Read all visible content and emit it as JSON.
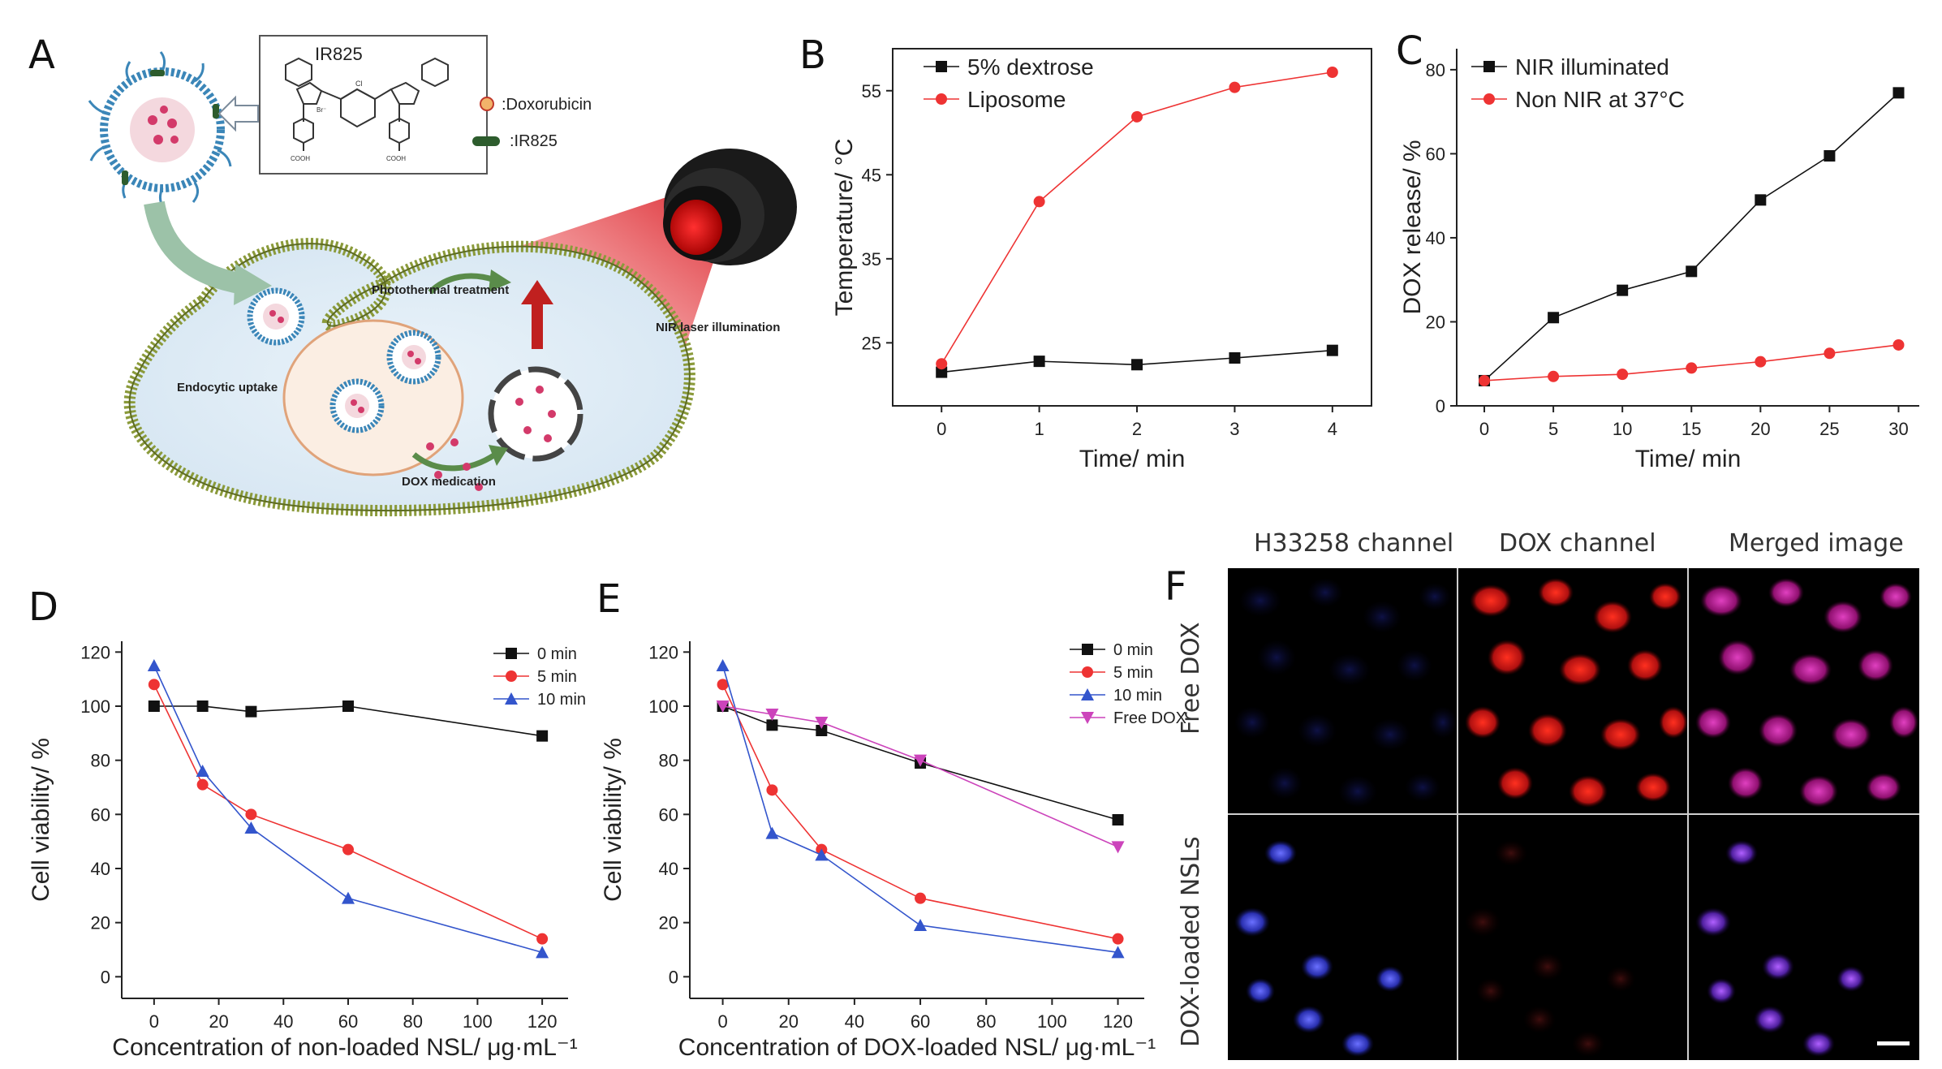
{
  "panels": {
    "A": "A",
    "B": "B",
    "C": "C",
    "D": "D",
    "E": "E",
    "F": "F"
  },
  "schematic": {
    "molecule_name": "IR825",
    "legend_doxorubicin": ":Doxorubicin",
    "legend_ir825": ":IR825",
    "label_photothermal": "Photothermal treatment",
    "label_laser": "NIR laser illumination",
    "label_endocytic": "Endocytic uptake",
    "label_dox_medication": "DOX medication",
    "cooh_left": "COOH",
    "cooh_right": "COOH",
    "cl_label": "Cl",
    "br_label": "Br⁻"
  },
  "microscopy": {
    "columns": [
      "H33258 channel",
      "DOX channel",
      "Merged image"
    ],
    "rows": [
      "Free DOX",
      "DOX-loaded NSLs"
    ]
  },
  "chart_data": [
    {
      "id": "B",
      "type": "line",
      "xlabel": "Time/ min",
      "ylabel": "Temperature/ °C",
      "xlim": [
        -0.5,
        4.4
      ],
      "ylim": [
        17.5,
        60
      ],
      "xticks": [
        0,
        1,
        2,
        3,
        4
      ],
      "yticks": [
        25,
        35,
        45,
        55
      ],
      "series": [
        {
          "name": "5% dextrose",
          "color": "#111111",
          "marker": "square",
          "x": [
            0,
            1,
            2,
            3,
            4
          ],
          "y": [
            21.5,
            22.8,
            22.4,
            23.2,
            24.1
          ]
        },
        {
          "name": "Liposome",
          "color": "#ee3333",
          "marker": "circle",
          "x": [
            0,
            1,
            2,
            3,
            4
          ],
          "y": [
            22.5,
            41.8,
            51.9,
            55.4,
            57.2
          ]
        }
      ]
    },
    {
      "id": "C",
      "type": "line",
      "xlabel": "Time/ min",
      "ylabel": "DOX release/ %",
      "xlim": [
        -2,
        31.5
      ],
      "ylim": [
        0,
        85
      ],
      "xticks": [
        0,
        5,
        10,
        15,
        20,
        25,
        30
      ],
      "yticks": [
        0,
        20,
        40,
        60,
        80
      ],
      "series": [
        {
          "name": "NIR illuminated",
          "color": "#111111",
          "marker": "square",
          "x": [
            0,
            5,
            10,
            15,
            20,
            25,
            30
          ],
          "y": [
            6,
            21,
            27.5,
            32,
            49,
            59.5,
            74.5
          ]
        },
        {
          "name": "Non NIR at 37°C",
          "color": "#ee3333",
          "marker": "circle",
          "x": [
            0,
            5,
            10,
            15,
            20,
            25,
            30
          ],
          "y": [
            6,
            7,
            7.5,
            9,
            10.5,
            12.5,
            14.5
          ]
        }
      ]
    },
    {
      "id": "D",
      "type": "line",
      "xlabel": "Concentration of non-loaded NSL/ μg·mL⁻¹",
      "ylabel": "Cell viability/ %",
      "xlim": [
        -10,
        128
      ],
      "ylim": [
        -8,
        124
      ],
      "xticks": [
        0,
        20,
        40,
        60,
        80,
        100,
        120
      ],
      "yticks": [
        0,
        20,
        40,
        60,
        80,
        100,
        120
      ],
      "series": [
        {
          "name": "0 min",
          "color": "#111111",
          "marker": "square",
          "x": [
            0,
            15,
            30,
            60,
            120
          ],
          "y": [
            100,
            100,
            98,
            100,
            89
          ]
        },
        {
          "name": "5 min",
          "color": "#ee3333",
          "marker": "circle",
          "x": [
            0,
            15,
            30,
            60,
            120
          ],
          "y": [
            108,
            71,
            60,
            47,
            14
          ]
        },
        {
          "name": "10 min",
          "color": "#3355cc",
          "marker": "triangle",
          "x": [
            0,
            15,
            30,
            60,
            120
          ],
          "y": [
            115,
            76,
            55,
            29,
            9
          ]
        }
      ]
    },
    {
      "id": "E",
      "type": "line",
      "xlabel": "Concentration of DOX-loaded NSL/ μg·mL⁻¹",
      "ylabel": "Cell viability/ %",
      "xlim": [
        -10,
        128
      ],
      "ylim": [
        -8,
        124
      ],
      "xticks": [
        0,
        20,
        40,
        60,
        80,
        100,
        120
      ],
      "yticks": [
        0,
        20,
        40,
        60,
        80,
        100,
        120
      ],
      "series": [
        {
          "name": "0 min",
          "color": "#111111",
          "marker": "square",
          "x": [
            0,
            15,
            30,
            60,
            120
          ],
          "y": [
            100,
            93,
            91,
            79,
            58
          ]
        },
        {
          "name": "5 min",
          "color": "#ee3333",
          "marker": "circle",
          "x": [
            0,
            15,
            30,
            60,
            120
          ],
          "y": [
            108,
            69,
            47,
            29,
            14
          ]
        },
        {
          "name": "10 min",
          "color": "#3355cc",
          "marker": "triangle",
          "x": [
            0,
            15,
            30,
            60,
            120
          ],
          "y": [
            115,
            53,
            45,
            19,
            9
          ]
        },
        {
          "name": "Free DOX",
          "color": "#cc44bb",
          "marker": "triangle-down",
          "x": [
            0,
            15,
            30,
            60,
            120
          ],
          "y": [
            100,
            97,
            94,
            80,
            48
          ]
        }
      ]
    }
  ]
}
